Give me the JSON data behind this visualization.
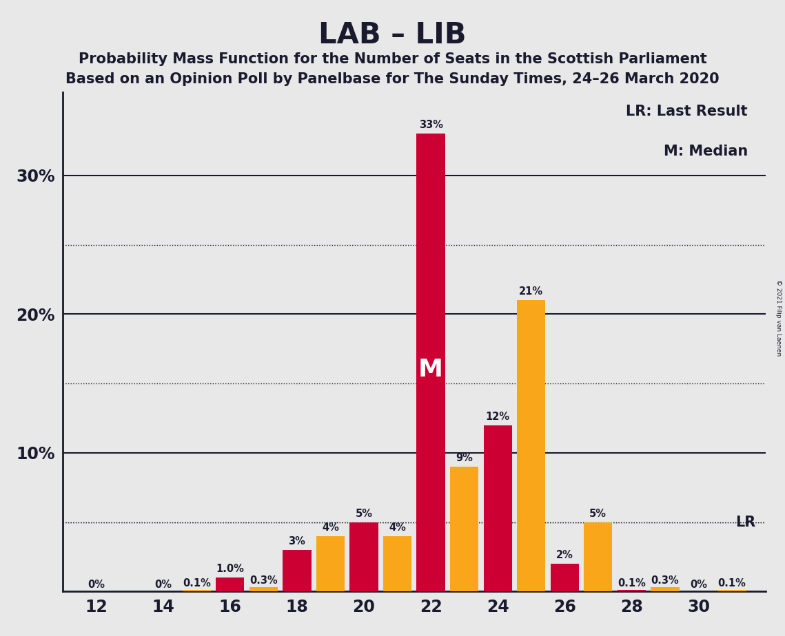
{
  "title": "LAB – LIB",
  "subtitle1": "Probability Mass Function for the Number of Seats in the Scottish Parliament",
  "subtitle2": "Based on an Opinion Poll by Panelbase for The Sunday Times, 24–26 March 2020",
  "copyright": "© 2021 Filip van Laenen",
  "legend_lr": "LR: Last Result",
  "legend_m": "M: Median",
  "median_label": "M",
  "lr_label": "LR",
  "lr_value": 5.0,
  "median_seat": 22,
  "background_color": "#e8e8e8",
  "plot_background_color": "#e8e8e8",
  "lab_color": "#CC0033",
  "lib_color": "#FAA61A",
  "text_color": "#1a1a2e",
  "seats": [
    12,
    14,
    16,
    18,
    20,
    22,
    24,
    26,
    28,
    30
  ],
  "lab_positions": [
    12,
    14,
    16,
    18,
    20,
    22,
    24,
    26,
    28,
    30
  ],
  "lib_positions": [
    13,
    15,
    17,
    19,
    21,
    23,
    25,
    27,
    29,
    31
  ],
  "lab_values": [
    0.0,
    0.0,
    1.0,
    3.0,
    5.0,
    33.0,
    12.0,
    2.0,
    0.1,
    0.0
  ],
  "lib_values": [
    0.0,
    0.1,
    0.3,
    4.0,
    4.0,
    9.0,
    21.0,
    5.0,
    0.3,
    0.1
  ],
  "lab_labels": [
    "0%",
    "0%",
    "1.0%",
    "3%",
    "5%",
    "33%",
    "12%",
    "2%",
    "0.1%",
    "0%"
  ],
  "lib_labels": [
    "",
    "0.1%",
    "0.3%",
    "4%",
    "4%",
    "9%",
    "21%",
    "5%",
    "0.3%",
    "0.1%"
  ],
  "ylim": [
    0,
    36
  ],
  "xlim": [
    11.0,
    32.0
  ],
  "xticks": [
    12,
    14,
    16,
    18,
    20,
    22,
    24,
    26,
    28,
    30
  ],
  "solid_gridlines": [
    10,
    20,
    30
  ],
  "dotted_gridlines": [
    5,
    15,
    25
  ],
  "bar_width": 0.85
}
